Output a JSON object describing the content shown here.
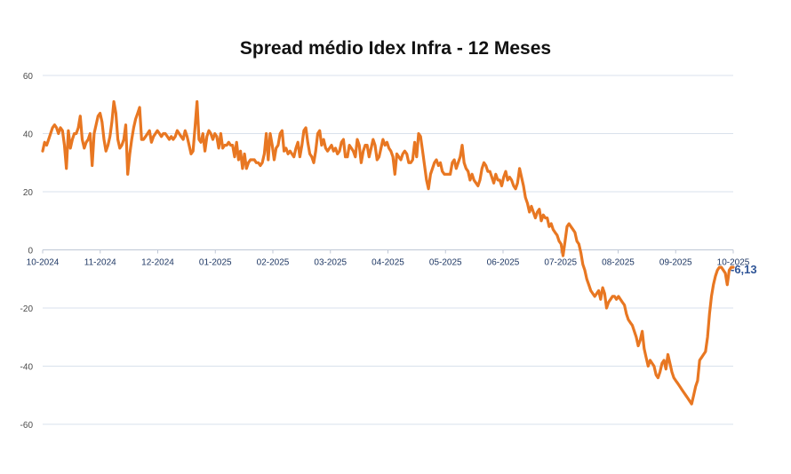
{
  "chart_data": {
    "type": "line",
    "title": "Spread médio Idex Infra - 12 Meses",
    "xlabel": "",
    "ylabel": "",
    "ylim": [
      -60,
      60
    ],
    "yticks": [
      60,
      40,
      20,
      0,
      -20,
      -40,
      -60
    ],
    "grid": "horizontal",
    "legend": "none",
    "color": "#E87722",
    "x_tick_labels": [
      "10-2024",
      "11-2024",
      "12-2024",
      "01-2025",
      "02-2025",
      "03-2025",
      "04-2025",
      "05-2025",
      "06-2025",
      "07-2025",
      "08-2025",
      "09-2025",
      "10-2025"
    ],
    "end_label": "-6,13",
    "series": [
      {
        "values": [
          34,
          37,
          36,
          38,
          40,
          42,
          43,
          42,
          40,
          42,
          41,
          36,
          28,
          41,
          35,
          38,
          40,
          40,
          42,
          46,
          38,
          35,
          37,
          38,
          40,
          29,
          40,
          43,
          46,
          47,
          44,
          38,
          34,
          36,
          39,
          44,
          51,
          47,
          38,
          35,
          36,
          38,
          43,
          26,
          33,
          38,
          42,
          45,
          47,
          49,
          38,
          38,
          39,
          40,
          41,
          37,
          39,
          40,
          41,
          40,
          39,
          40,
          40,
          39,
          38,
          39,
          38,
          39,
          41,
          40,
          39,
          38,
          41,
          39,
          36,
          33,
          34,
          42,
          51,
          38,
          37,
          40,
          34,
          39,
          41,
          40,
          38,
          40,
          39,
          35,
          40,
          35,
          36,
          36,
          37,
          36,
          36,
          32,
          37,
          31,
          34,
          28,
          33,
          28,
          30,
          31,
          31,
          31,
          30,
          30,
          29,
          30,
          33,
          40,
          31,
          40,
          36,
          31,
          35,
          36,
          40,
          41,
          34,
          35,
          33,
          34,
          33,
          32,
          35,
          37,
          32,
          36,
          41,
          42,
          37,
          33,
          32,
          30,
          34,
          40,
          41,
          36,
          38,
          35,
          34,
          35,
          36,
          34,
          35,
          33,
          34,
          37,
          38,
          32,
          32,
          36,
          35,
          34,
          32,
          38,
          36,
          30,
          34,
          36,
          36,
          32,
          35,
          38,
          36,
          31,
          32,
          35,
          38,
          36,
          37,
          35,
          34,
          32,
          26,
          33,
          32,
          31,
          33,
          34,
          33,
          30,
          30,
          31,
          37,
          32,
          40,
          39,
          34,
          29,
          24,
          21,
          26,
          28,
          30,
          31,
          29,
          30,
          27,
          26,
          26,
          26,
          26,
          30,
          31,
          28,
          30,
          32,
          36,
          30,
          28,
          27,
          24,
          26,
          24,
          23,
          22,
          24,
          28,
          30,
          29,
          27,
          27,
          25,
          23,
          26,
          24,
          24,
          22,
          25,
          27,
          24,
          25,
          24,
          22,
          21,
          23,
          28,
          25,
          22,
          18,
          16,
          13,
          15,
          13,
          11,
          13,
          14,
          10,
          12,
          11,
          11,
          8,
          9,
          7,
          6,
          5,
          3,
          2,
          -2,
          3,
          8,
          9,
          8,
          7,
          6,
          3,
          2,
          -1,
          -5,
          -7,
          -10,
          -12,
          -14,
          -15,
          -16,
          -15,
          -14,
          -17,
          -13,
          -15,
          -20,
          -18,
          -17,
          -16,
          -16,
          -17,
          -16,
          -17,
          -18,
          -19,
          -22,
          -24,
          -25,
          -26,
          -28,
          -30,
          -33,
          -31,
          -28,
          -34,
          -37,
          -40,
          -38,
          -39,
          -40,
          -43,
          -44,
          -42,
          -39,
          -38,
          -41,
          -36,
          -39,
          -42,
          -44,
          -45,
          -46,
          -47,
          -48,
          -49,
          -50,
          -51,
          -52,
          -53,
          -50,
          -47,
          -45,
          -38,
          -37,
          -36,
          -35,
          -30,
          -22,
          -16,
          -12,
          -9,
          -7,
          -6,
          -6,
          -7,
          -8,
          -12,
          -7,
          -6,
          -6
        ]
      }
    ]
  }
}
